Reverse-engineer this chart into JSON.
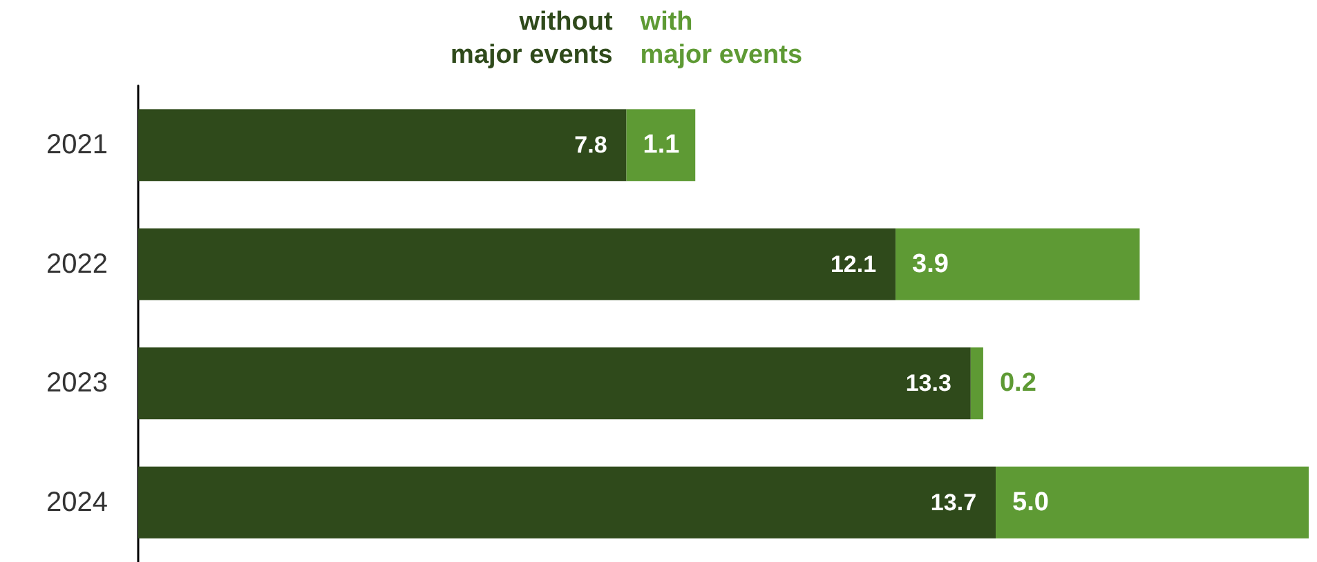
{
  "chart_data": {
    "type": "bar",
    "orientation": "horizontal",
    "stacked": true,
    "legend": "top",
    "categories": [
      "2021",
      "2022",
      "2023",
      "2024"
    ],
    "series": [
      {
        "name": "without major events",
        "color": "#2f4a1b",
        "values": [
          7.8,
          12.1,
          13.3,
          13.7
        ],
        "value_labels": [
          "7.8",
          "12.1",
          "13.3",
          "13.7"
        ]
      },
      {
        "name": "with major events",
        "color": "#5e9a34",
        "values": [
          1.1,
          3.9,
          0.2,
          5.0
        ],
        "value_labels": [
          "1.1",
          "3.9",
          "0.2",
          "5.0"
        ]
      }
    ]
  }
}
